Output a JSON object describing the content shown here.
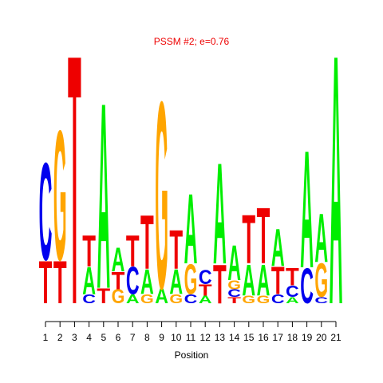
{
  "chart_data": {
    "type": "logo",
    "title": "PSSM #2; e=0.76",
    "xlabel": "Position",
    "colors": {
      "A": "#00ee00",
      "C": "#0000ee",
      "G": "#ffa500",
      "T": "#ee0000"
    },
    "ylim": [
      0,
      2
    ],
    "xlim": [
      1,
      21
    ],
    "xticks": [
      1,
      2,
      3,
      4,
      5,
      6,
      7,
      8,
      9,
      10,
      11,
      12,
      13,
      14,
      15,
      16,
      17,
      18,
      19,
      20,
      21
    ],
    "positions": [
      {
        "letters": [
          "T",
          "C"
        ],
        "heights": [
          0.34,
          0.78
        ]
      },
      {
        "letters": [
          "T",
          "G"
        ],
        "heights": [
          0.34,
          1.04
        ]
      },
      {
        "letters": [
          "T"
        ],
        "heights": [
          2.0
        ]
      },
      {
        "letters": [
          "C",
          "A",
          "T"
        ],
        "heights": [
          0.07,
          0.22,
          0.25
        ]
      },
      {
        "letters": [
          "T",
          "A"
        ],
        "heights": [
          0.12,
          1.49
        ]
      },
      {
        "letters": [
          "G",
          "T",
          "A"
        ],
        "heights": [
          0.11,
          0.14,
          0.19
        ]
      },
      {
        "letters": [
          "A",
          "C",
          "T"
        ],
        "heights": [
          0.07,
          0.22,
          0.25
        ]
      },
      {
        "letters": [
          "G",
          "A",
          "T"
        ],
        "heights": [
          0.07,
          0.2,
          0.43
        ]
      },
      {
        "letters": [
          "A",
          "G"
        ],
        "heights": [
          0.12,
          1.5
        ]
      },
      {
        "letters": [
          "G",
          "A",
          "T"
        ],
        "heights": [
          0.07,
          0.2,
          0.31
        ]
      },
      {
        "letters": [
          "C",
          "G",
          "A"
        ],
        "heights": [
          0.07,
          0.24,
          0.56
        ]
      },
      {
        "letters": [
          "A",
          "T",
          "C"
        ],
        "heights": [
          0.06,
          0.09,
          0.11
        ]
      },
      {
        "letters": [
          "T",
          "A"
        ],
        "heights": [
          0.31,
          0.81
        ]
      },
      {
        "letters": [
          "T",
          "C",
          "G",
          "A"
        ],
        "heights": [
          0.05,
          0.06,
          0.07,
          0.28
        ]
      },
      {
        "letters": [
          "G",
          "A",
          "T"
        ],
        "heights": [
          0.06,
          0.25,
          0.39
        ]
      },
      {
        "letters": [
          "G",
          "A",
          "T"
        ],
        "heights": [
          0.06,
          0.25,
          0.45
        ]
      },
      {
        "letters": [
          "C",
          "T",
          "A"
        ],
        "heights": [
          0.07,
          0.22,
          0.3
        ]
      },
      {
        "letters": [
          "A",
          "C",
          "T"
        ],
        "heights": [
          0.05,
          0.09,
          0.14
        ]
      },
      {
        "letters": [
          "C",
          "A"
        ],
        "heights": [
          0.28,
          0.94
        ]
      },
      {
        "letters": [
          "C",
          "G",
          "A"
        ],
        "heights": [
          0.05,
          0.27,
          0.39
        ]
      },
      {
        "letters": [
          "A"
        ],
        "heights": [
          2.0
        ]
      }
    ]
  }
}
